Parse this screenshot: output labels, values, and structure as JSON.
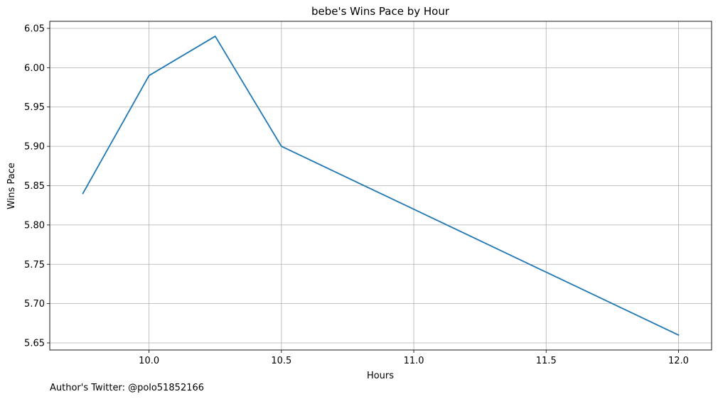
{
  "chart_data": {
    "type": "line",
    "title": "bebe's Wins Pace by Hour",
    "xlabel": "Hours",
    "ylabel": "Wins Pace",
    "xlim": [
      9.625,
      12.125
    ],
    "ylim": [
      5.641,
      6.059
    ],
    "x_ticks": [
      10.0,
      10.5,
      11.0,
      11.5,
      12.0
    ],
    "y_ticks": [
      5.65,
      5.7,
      5.75,
      5.8,
      5.85,
      5.9,
      5.95,
      6.0,
      6.05
    ],
    "grid": true,
    "legend": "none",
    "series": [
      {
        "x": [
          9.75,
          10.0,
          10.25,
          10.5,
          11.0,
          11.5,
          12.0
        ],
        "values": [
          5.84,
          5.99,
          6.04,
          5.9,
          5.82,
          5.74,
          5.66
        ],
        "color": "#1f77b4"
      }
    ]
  },
  "footer": {
    "text": "Author's Twitter: @polo51852166"
  }
}
